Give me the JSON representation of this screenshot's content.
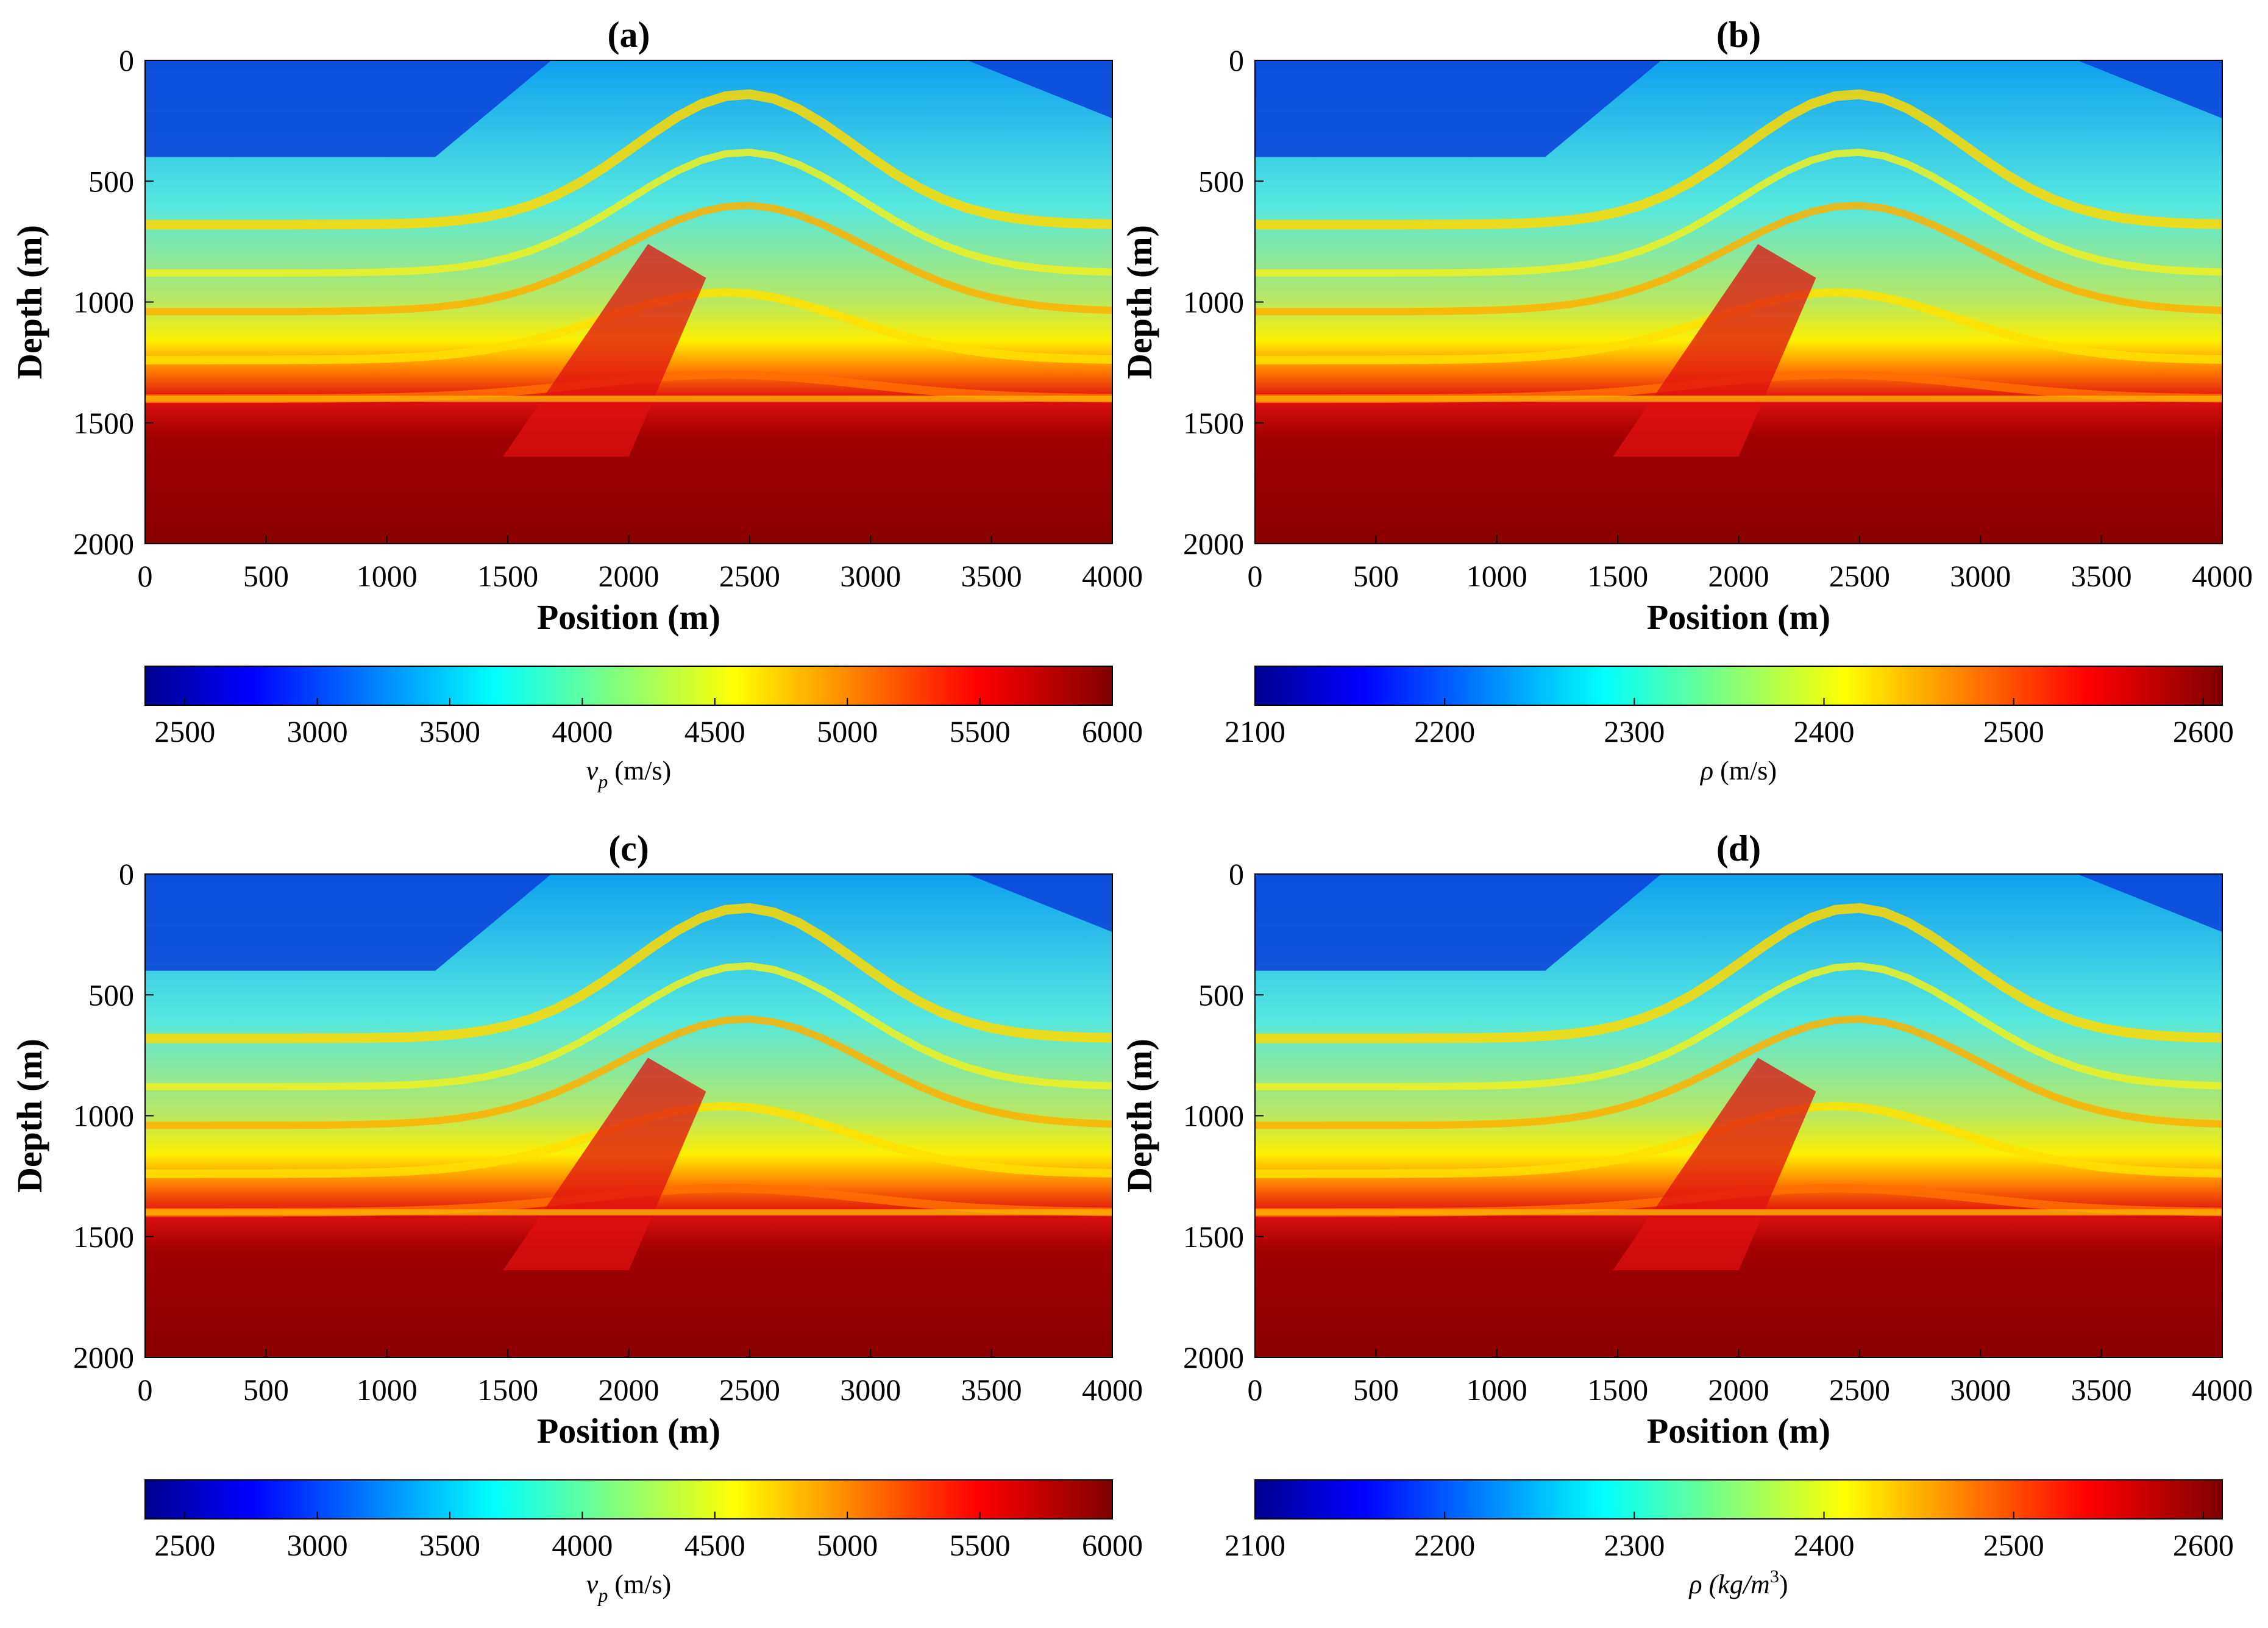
{
  "figure": {
    "colormap": "jet"
  },
  "chart_data": [
    {
      "type": "heatmap",
      "title": "(a)",
      "xlabel": "Position (m)",
      "ylabel": "Depth (m)",
      "xlim": [
        0,
        4000
      ],
      "ylim": [
        0,
        2000
      ],
      "xticks": [
        "0",
        "500",
        "1000",
        "1500",
        "2000",
        "2500",
        "3000",
        "3500",
        "4000"
      ],
      "yticks": [
        "0",
        "500",
        "1000",
        "1500",
        "2000"
      ],
      "colorbar": {
        "label_main": "v",
        "label_sub": "p",
        "label_rest": " (m/s)",
        "range": [
          2350,
          6000
        ],
        "ticks": [
          "2500",
          "3000",
          "3500",
          "4000",
          "4500",
          "5000",
          "5500",
          "6000"
        ]
      }
    },
    {
      "type": "heatmap",
      "title": "(b)",
      "xlabel": "Position (m)",
      "ylabel": "Depth (m)",
      "xlim": [
        0,
        4000
      ],
      "ylim": [
        0,
        2000
      ],
      "xticks": [
        "0",
        "500",
        "1000",
        "1500",
        "2000",
        "2500",
        "3000",
        "3500",
        "4000"
      ],
      "yticks": [
        "0",
        "500",
        "1000",
        "1500",
        "2000"
      ],
      "colorbar": {
        "label_main": "ρ",
        "label_sub": "",
        "label_rest": "  (m/s)",
        "range": [
          2100,
          2610
        ],
        "ticks": [
          "2100",
          "2200",
          "2300",
          "2400",
          "2500",
          "2600"
        ]
      }
    },
    {
      "type": "heatmap",
      "title": "(c)",
      "xlabel": "Position (m)",
      "ylabel": "Depth (m)",
      "xlim": [
        0,
        4000
      ],
      "ylim": [
        0,
        2000
      ],
      "xticks": [
        "0",
        "500",
        "1000",
        "1500",
        "2000",
        "2500",
        "3000",
        "3500",
        "4000"
      ],
      "yticks": [
        "0",
        "500",
        "1000",
        "1500",
        "2000"
      ],
      "colorbar": {
        "label_main": "v",
        "label_sub": "p",
        "label_rest": " (m/s)",
        "range": [
          2350,
          6000
        ],
        "ticks": [
          "2500",
          "3000",
          "3500",
          "4000",
          "4500",
          "5000",
          "5500",
          "6000"
        ]
      }
    },
    {
      "type": "heatmap",
      "title": "(d)",
      "xlabel": "Position (m)",
      "ylabel": "Depth (m)",
      "xlim": [
        0,
        4000
      ],
      "ylim": [
        0,
        2000
      ],
      "xticks": [
        "0",
        "500",
        "1000",
        "1500",
        "2000",
        "2500",
        "3000",
        "3500",
        "4000"
      ],
      "yticks": [
        "0",
        "500",
        "1000",
        "1500",
        "2000"
      ],
      "colorbar": {
        "label_main": "ρ (kg/m",
        "label_sub": "",
        "label_sup": "3",
        "label_rest": ")",
        "range": [
          2100,
          2610
        ],
        "ticks": [
          "2100",
          "2200",
          "2300",
          "2400",
          "2500",
          "2600"
        ]
      }
    }
  ]
}
